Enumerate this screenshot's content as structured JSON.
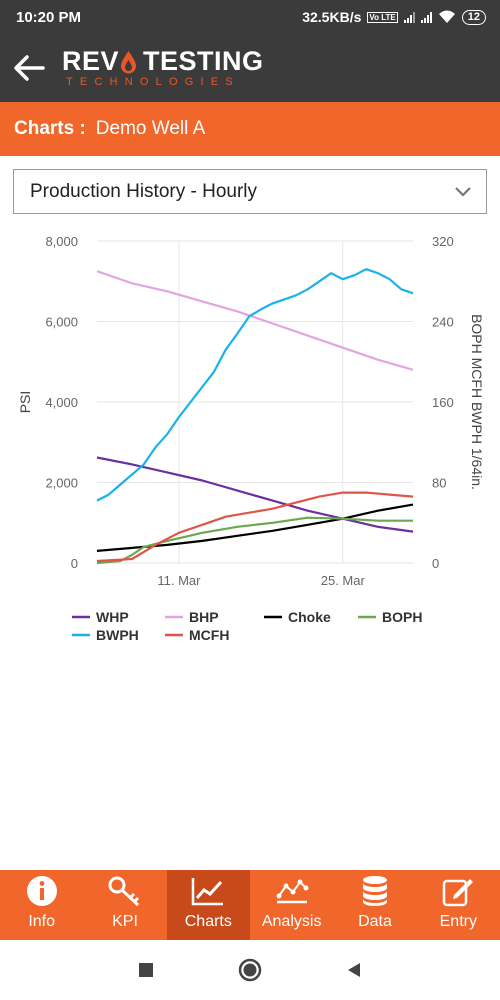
{
  "status_bar": {
    "time": "10:20 PM",
    "speed": "32.5KB/s",
    "volte": "Vo LTE",
    "battery": "12"
  },
  "header": {
    "logo_word1": "REV",
    "logo_word2": "TESTING",
    "logo_sub": "TECHNOLOGIES"
  },
  "context_bar": {
    "label": "Charts :",
    "value": "Demo Well A"
  },
  "dropdown": {
    "selected": "Production History - Hourly"
  },
  "chart_data": {
    "type": "line",
    "ylabel": "PSI",
    "y2label": "BOPH MCFH BWPH 1/64in.",
    "ylim": [
      0,
      8000
    ],
    "y2lim": [
      0,
      320
    ],
    "y_ticks": [
      "8,000",
      "6,000",
      "4,000",
      "2,000",
      "0"
    ],
    "y2_ticks": [
      "320",
      "240",
      "160",
      "80",
      "0"
    ],
    "x_ticks": [
      "11. Mar",
      "25. Mar"
    ],
    "x_tick_positions": [
      7,
      21
    ],
    "x_range": [
      0,
      27
    ],
    "series": [
      {
        "name": "WHP",
        "axis": "left",
        "color": "#6a2fa0",
        "x": [
          0,
          3,
          6,
          9,
          12,
          15,
          18,
          21,
          24,
          27
        ],
        "values": [
          2620,
          2450,
          2250,
          2050,
          1800,
          1550,
          1300,
          1100,
          900,
          780
        ]
      },
      {
        "name": "BHP",
        "axis": "left",
        "color": "#e3a5de",
        "x": [
          0,
          3,
          6,
          9,
          12,
          15,
          18,
          21,
          24,
          27
        ],
        "values": [
          7250,
          6950,
          6750,
          6500,
          6250,
          5950,
          5650,
          5350,
          5050,
          4800
        ]
      },
      {
        "name": "Choke",
        "axis": "right",
        "color": "#000000",
        "x": [
          0,
          3,
          6,
          9,
          12,
          15,
          18,
          21,
          24,
          27
        ],
        "values": [
          12,
          15,
          18,
          22,
          27,
          32,
          38,
          44,
          52,
          58
        ]
      },
      {
        "name": "BOPH",
        "axis": "right",
        "color": "#6aa84f",
        "x": [
          0,
          1,
          2,
          3,
          4,
          6,
          9,
          12,
          15,
          18,
          21,
          24,
          27
        ],
        "values": [
          0,
          1,
          2,
          8,
          16,
          22,
          30,
          36,
          40,
          45,
          44,
          42,
          42
        ]
      },
      {
        "name": "BWPH",
        "axis": "right",
        "color": "#1ab2e8",
        "x": [
          0,
          1,
          2,
          3,
          4,
          5,
          6,
          7,
          8,
          9,
          10,
          11,
          12,
          13,
          14,
          15,
          16,
          17,
          18,
          19,
          20,
          21,
          22,
          23,
          24,
          25,
          26,
          27
        ],
        "values": [
          62,
          68,
          78,
          88,
          98,
          115,
          128,
          145,
          160,
          175,
          190,
          212,
          228,
          245,
          252,
          258,
          262,
          266,
          272,
          280,
          288,
          282,
          286,
          292,
          288,
          282,
          272,
          268
        ]
      },
      {
        "name": "MCFH",
        "axis": "right",
        "color": "#e0554a",
        "x": [
          0,
          3,
          5,
          7,
          9,
          11,
          13,
          15,
          17,
          19,
          21,
          23,
          25,
          27
        ],
        "values": [
          2,
          4,
          18,
          30,
          38,
          46,
          50,
          54,
          60,
          66,
          70,
          70,
          68,
          66
        ]
      }
    ]
  },
  "bottom_nav": [
    {
      "label": "Info",
      "icon": "info-icon"
    },
    {
      "label": "KPI",
      "icon": "key-icon"
    },
    {
      "label": "Charts",
      "icon": "chart-line-icon",
      "active": true
    },
    {
      "label": "Analysis",
      "icon": "analysis-icon"
    },
    {
      "label": "Data",
      "icon": "database-icon"
    },
    {
      "label": "Entry",
      "icon": "edit-icon"
    }
  ]
}
